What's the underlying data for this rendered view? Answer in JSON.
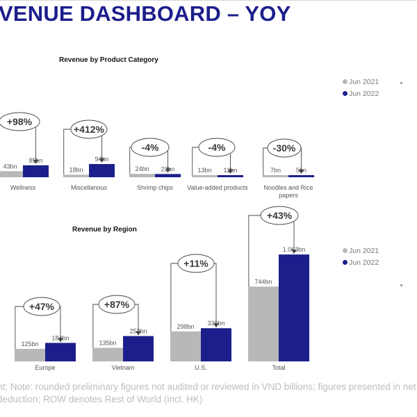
{
  "header": {
    "title": "VENUE DASHBOARD – YOY"
  },
  "footnote": {
    "line1": "nt; Note: rounded preliminary figures not audited or reviewed in VND billions; figures presented in net r",
    "line2": "deduction; ROW denotes Rest of World (incl. HK)"
  },
  "colors": {
    "jun2021": "#b8b8b8",
    "jun2022": "#1c1e8c",
    "callout_line": "#444444"
  },
  "chart_data": [
    {
      "type": "bar",
      "title": "Revenue by Product Category",
      "categories": [
        "Wellness",
        "Miscellanous",
        "Shrimp chips",
        "Value-added products",
        "Noodles and Rice papers"
      ],
      "category_lines": [
        [
          "Wellness"
        ],
        [
          "Miscellanous"
        ],
        [
          "Shrimp chips"
        ],
        [
          "Value-added products"
        ],
        [
          "Noodles and Rice",
          "papers"
        ]
      ],
      "series": [
        {
          "name": "Jun 2021",
          "values": [
            43,
            18,
            24,
            13,
            7
          ],
          "labels": [
            "43bn",
            "18bn",
            "24bn",
            "13bn",
            "7bn"
          ]
        },
        {
          "name": "Jun 2022",
          "values": [
            85,
            94,
            23,
            12,
            5
          ],
          "labels": [
            "85bn",
            "94bn",
            "23bn",
            "12bn",
            "5bn"
          ]
        }
      ],
      "changes": [
        "+98%",
        "+412%",
        "-4%",
        "-4%",
        "-30%"
      ],
      "legend": [
        "Jun 2021",
        "Jun 2022"
      ],
      "legend_position": "top-right",
      "grid": false
    },
    {
      "type": "bar",
      "title": "Revenue by Region",
      "categories": [
        "Europe",
        "Vietnam",
        "U.S.",
        "Total"
      ],
      "category_lines": [
        [
          "Europe"
        ],
        [
          "Vietnam"
        ],
        [
          "U.S."
        ],
        [
          "Total"
        ]
      ],
      "series": [
        {
          "name": "Jun 2021",
          "values": [
            125,
            135,
            298,
            744
          ],
          "labels": [
            "125bn",
            "135bn",
            "298bn",
            "744bn"
          ]
        },
        {
          "name": "Jun 2022",
          "values": [
            184,
            252,
            330,
            1063
          ],
          "labels": [
            "184bn",
            "252bn",
            "330bn",
            "1.063bn"
          ]
        }
      ],
      "changes": [
        "+47%",
        "+87%",
        "+11%",
        "+43%"
      ],
      "legend": [
        "Jun 2021",
        "Jun 2022"
      ],
      "legend_position": "top-right",
      "grid": false
    }
  ]
}
